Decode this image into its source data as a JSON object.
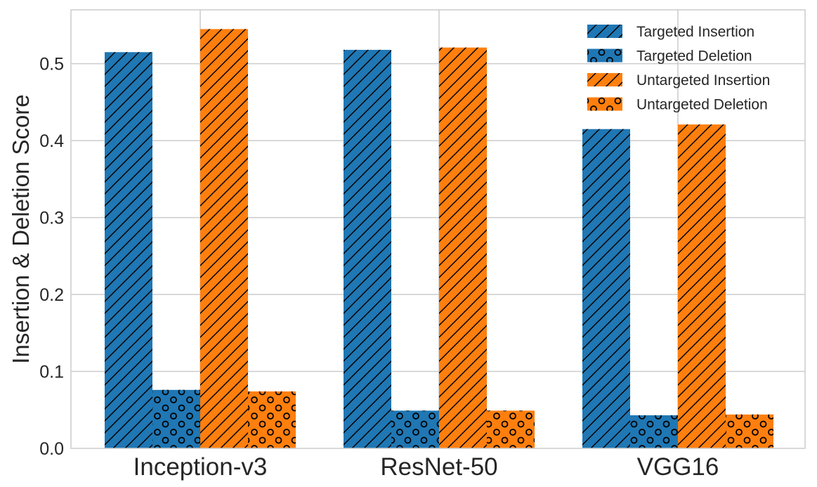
{
  "chart_data": {
    "type": "bar",
    "title": "",
    "xlabel": "",
    "ylabel": "Insertion & Deletion Score",
    "categories": [
      "Inception-v3",
      "ResNet-50",
      "VGG16"
    ],
    "ylim": [
      0,
      0.57
    ],
    "yticks": [
      0.0,
      0.1,
      0.2,
      0.3,
      0.4,
      0.5
    ],
    "ytick_labels": [
      "0.0",
      "0.1",
      "0.2",
      "0.3",
      "0.4",
      "0.5"
    ],
    "grid": true,
    "legend_position": "top-right",
    "series": [
      {
        "name": "Targeted Insertion",
        "color": "#1f77b4",
        "hatch": "diagonal",
        "values": [
          0.515,
          0.518,
          0.415
        ]
      },
      {
        "name": "Targeted Deletion",
        "color": "#1f77b4",
        "hatch": "circles",
        "values": [
          0.076,
          0.049,
          0.043
        ]
      },
      {
        "name": "Untargeted Insertion",
        "color": "#ff7f0e",
        "hatch": "diagonal",
        "values": [
          0.545,
          0.521,
          0.421
        ]
      },
      {
        "name": "Untargeted Deletion",
        "color": "#ff7f0e",
        "hatch": "circles",
        "values": [
          0.074,
          0.049,
          0.044
        ]
      }
    ]
  }
}
